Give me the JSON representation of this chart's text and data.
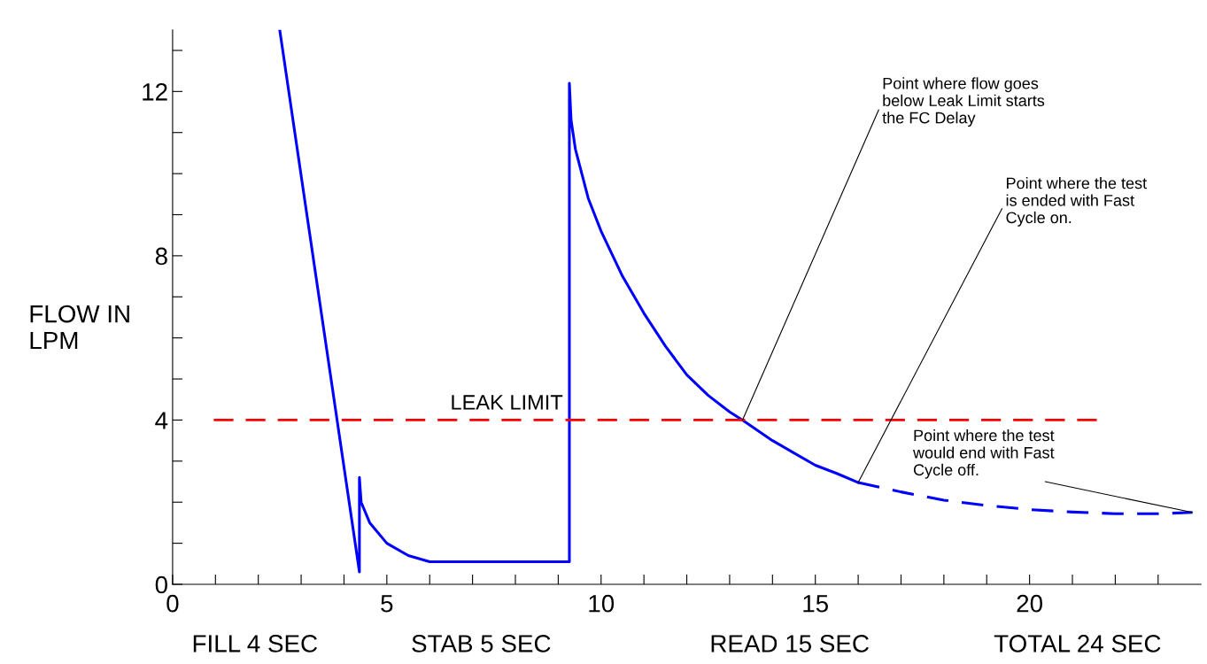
{
  "chart_data": {
    "type": "line",
    "ylabel": "FLOW IN\nLPM",
    "xlim": [
      0,
      24
    ],
    "ylim": [
      0,
      13.5
    ],
    "xticks": [
      0,
      {
        "value": 1,
        "label": null
      },
      {
        "value": 2,
        "label": null
      },
      {
        "value": 3,
        "label": null
      },
      {
        "value": 4,
        "label": null
      },
      5,
      {
        "value": 6,
        "label": null
      },
      {
        "value": 7,
        "label": null
      },
      {
        "value": 8,
        "label": null
      },
      {
        "value": 9,
        "label": null
      },
      10,
      {
        "value": 11,
        "label": null
      },
      {
        "value": 12,
        "label": null
      },
      {
        "value": 13,
        "label": null
      },
      {
        "value": 14,
        "label": null
      },
      15,
      {
        "value": 16,
        "label": null
      },
      {
        "value": 17,
        "label": null
      },
      {
        "value": 18,
        "label": null
      },
      {
        "value": 19,
        "label": null
      },
      20,
      {
        "value": 21,
        "label": null
      },
      {
        "value": 22,
        "label": null
      },
      {
        "value": 23,
        "label": null
      }
    ],
    "yticks": [
      0,
      {
        "value": 1,
        "label": null
      },
      {
        "value": 2,
        "label": null
      },
      {
        "value": 3,
        "label": null
      },
      4,
      {
        "value": 5,
        "label": null
      },
      {
        "value": 6,
        "label": null
      },
      {
        "value": 7,
        "label": null
      },
      8,
      {
        "value": 9,
        "label": null
      },
      {
        "value": 10,
        "label": null
      },
      {
        "value": 11,
        "label": null
      },
      12,
      {
        "value": 13,
        "label": null
      }
    ],
    "grid": false,
    "legend": false,
    "series": [
      {
        "color": "#0000ff",
        "line_style": "solid",
        "x": [
          2.5,
          4.36,
          4.36,
          4.4,
          4.6,
          5,
          5.5,
          6,
          9.26,
          9.26,
          9.3,
          9.4,
          9.5,
          9.7,
          10,
          10.5,
          11,
          11.5,
          12,
          12.5,
          13,
          13.3,
          14,
          14.5,
          15,
          15.5,
          16
        ],
        "values": [
          13.5,
          0.3,
          2.6,
          2.0,
          1.5,
          1.0,
          0.7,
          0.55,
          0.55,
          12.2,
          11.3,
          10.6,
          10.2,
          9.4,
          8.6,
          7.5,
          6.6,
          5.8,
          5.1,
          4.6,
          4.2,
          4.0,
          3.5,
          3.2,
          2.9,
          2.7,
          2.48
        ]
      },
      {
        "color": "#0000ff",
        "line_style": "dashed",
        "x": [
          16,
          17,
          18,
          19,
          20,
          21,
          22,
          23,
          23.8
        ],
        "values": [
          2.48,
          2.25,
          2.05,
          1.92,
          1.82,
          1.76,
          1.72,
          1.72,
          1.75
        ]
      }
    ],
    "ref_lines": [
      {
        "axis": "y",
        "value": 4,
        "label": "LEAK LIMIT",
        "color": "#ff0000",
        "line_style": "dashed"
      }
    ],
    "annotations": [
      {
        "text": "Point where flow goes\nbelow Leak Limit starts\nthe FC Delay",
        "x": 13.3,
        "y": 4
      },
      {
        "text": "Point where the test\nis ended with Fast\nCycle on.",
        "x": 16,
        "y": 2.48
      },
      {
        "text": "Point where the test\nwould end with Fast\nCycle off.",
        "x": 23.8,
        "y": 1.75
      },
      "FILL 4 SEC",
      "STAB 5 SEC",
      "READ 15 SEC",
      "TOTAL 24 SEC"
    ]
  }
}
